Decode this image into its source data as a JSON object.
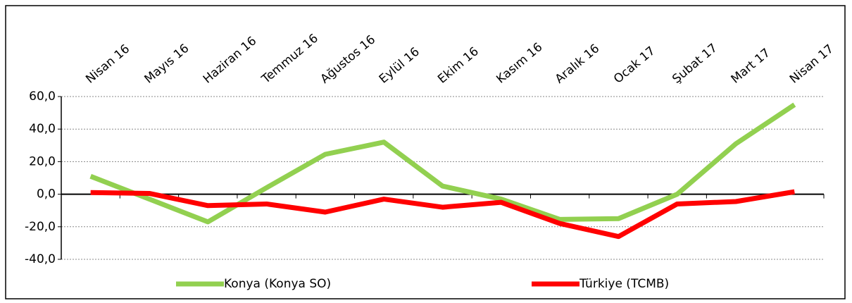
{
  "chart_data": {
    "type": "line",
    "categories": [
      "Nisan 16",
      "Mayıs 16",
      "Haziran 16",
      "Temmuz 16",
      "Ağustos 16",
      "Eylül 16",
      "Ekim 16",
      "Kasım 16",
      "Aralık 16",
      "Ocak 17",
      "Şubat 17",
      "Mart 17",
      "Nisan 17"
    ],
    "series": [
      {
        "name": "Konya (Konya SO)",
        "color": "#92d050",
        "values": [
          11,
          -3,
          -17,
          4,
          24.5,
          32,
          5,
          -3,
          -15.5,
          -15,
          0,
          31,
          55
        ]
      },
      {
        "name": "Türkiye (TCMB)",
        "color": "#ff0000",
        "values": [
          1,
          0.5,
          -7,
          -6,
          -11,
          -3,
          -8,
          -5,
          -18,
          -26,
          -6,
          -4.5,
          1.5
        ]
      }
    ],
    "ylim": [
      -40,
      60
    ],
    "yticks": [
      {
        "value": -40,
        "label": "-40,0"
      },
      {
        "value": -20,
        "label": "-20,0"
      },
      {
        "value": 0,
        "label": "0,0"
      },
      {
        "value": 20,
        "label": "20,0"
      },
      {
        "value": 40,
        "label": "40,0"
      },
      {
        "value": 60,
        "label": "60,0"
      }
    ],
    "grid": true,
    "legend": "bottom"
  }
}
